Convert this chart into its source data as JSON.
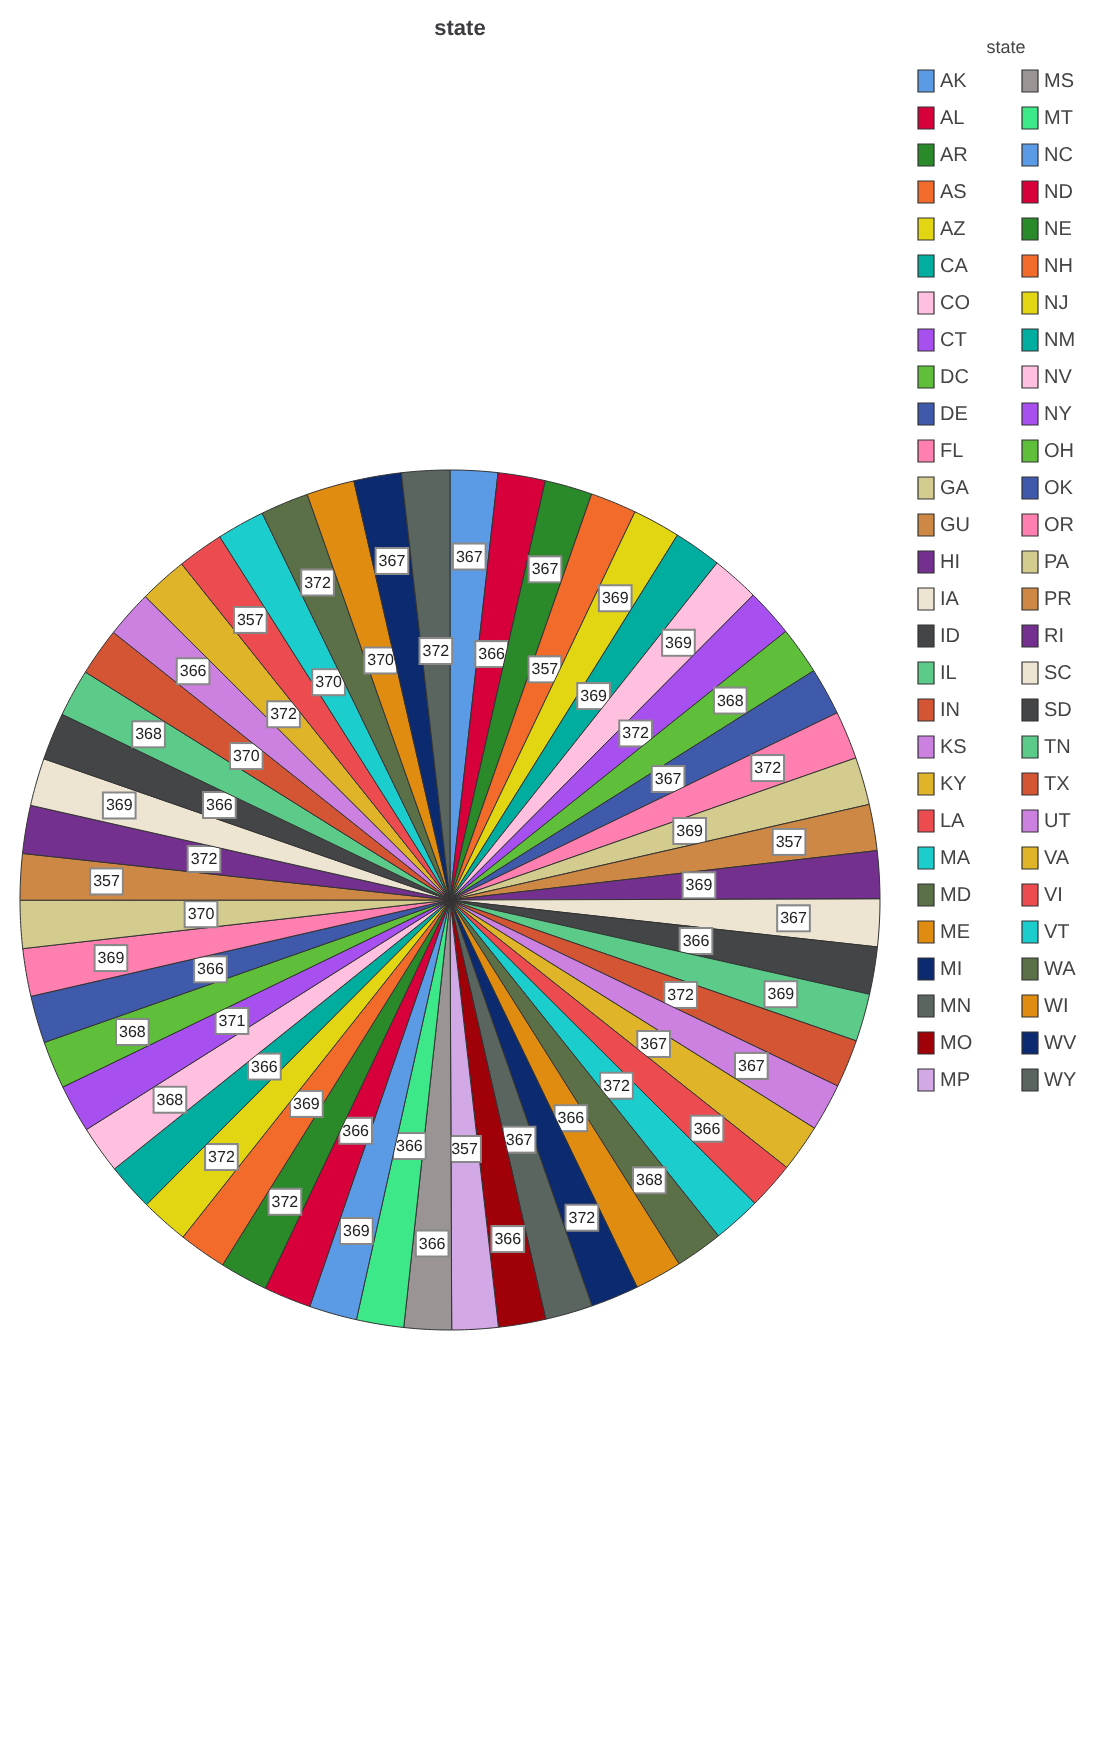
{
  "chart_data": {
    "type": "pie",
    "title": "state",
    "legend_title": "state",
    "legend": "right",
    "data_labels": true,
    "categories": [
      "AK",
      "AL",
      "AR",
      "AS",
      "AZ",
      "CA",
      "CO",
      "CT",
      "DC",
      "DE",
      "FL",
      "GA",
      "GU",
      "HI",
      "IA",
      "ID",
      "IL",
      "IN",
      "KS",
      "KY",
      "LA",
      "MA",
      "MD",
      "ME",
      "MI",
      "MN",
      "MO",
      "MP",
      "MS",
      "MT",
      "NC",
      "ND",
      "NE",
      "NH",
      "NJ",
      "NM",
      "NV",
      "NY",
      "OH",
      "OK",
      "OR",
      "PA",
      "PR",
      "RI",
      "SC",
      "SD",
      "TN",
      "TX",
      "UT",
      "VA",
      "VI",
      "VT",
      "WA",
      "WI",
      "WV",
      "WY"
    ],
    "values": [
      367,
      366,
      367,
      357,
      369,
      369,
      369,
      372,
      368,
      367,
      372,
      369,
      357,
      369,
      367,
      366,
      369,
      372,
      367,
      367,
      366,
      372,
      368,
      366,
      372,
      367,
      366,
      357,
      366,
      366,
      369,
      366,
      372,
      369,
      372,
      366,
      368,
      371,
      368,
      366,
      369,
      370,
      357,
      372,
      369,
      366,
      368,
      370,
      366,
      372,
      357,
      370,
      372,
      370,
      367,
      372
    ],
    "colors": [
      "#5b9be6",
      "#d8003a",
      "#2a8a2a",
      "#f26b2a",
      "#e2d511",
      "#00ad9f",
      "#ffc0e0",
      "#a84ff0",
      "#5fbf3a",
      "#3f5aaa",
      "#ff80b0",
      "#d4cb8e",
      "#cc8844",
      "#74308f",
      "#ede5d2",
      "#444546",
      "#5ccb8a",
      "#d45533",
      "#cc80e0",
      "#e0b428",
      "#ec4c50",
      "#1ccdcd",
      "#5c7048",
      "#e08c10",
      "#0c2a70",
      "#5a6560",
      "#a00008",
      "#d2a8e6",
      "#9a9494",
      "#3de888",
      "#5b9be6",
      "#d8003a",
      "#2a8a2a",
      "#f26b2a",
      "#e2d511",
      "#00ad9f",
      "#ffc0e0",
      "#a84ff0",
      "#5fbf3a",
      "#3f5aaa",
      "#ff80b0",
      "#d4cb8e",
      "#cc8844",
      "#74308f",
      "#ede5d2",
      "#444546",
      "#5ccb8a",
      "#d45533",
      "#cc80e0",
      "#e0b428",
      "#ec4c50",
      "#1ccdcd",
      "#5c7048",
      "#e08c10",
      "#0c2a70",
      "#5a6560"
    ]
  }
}
